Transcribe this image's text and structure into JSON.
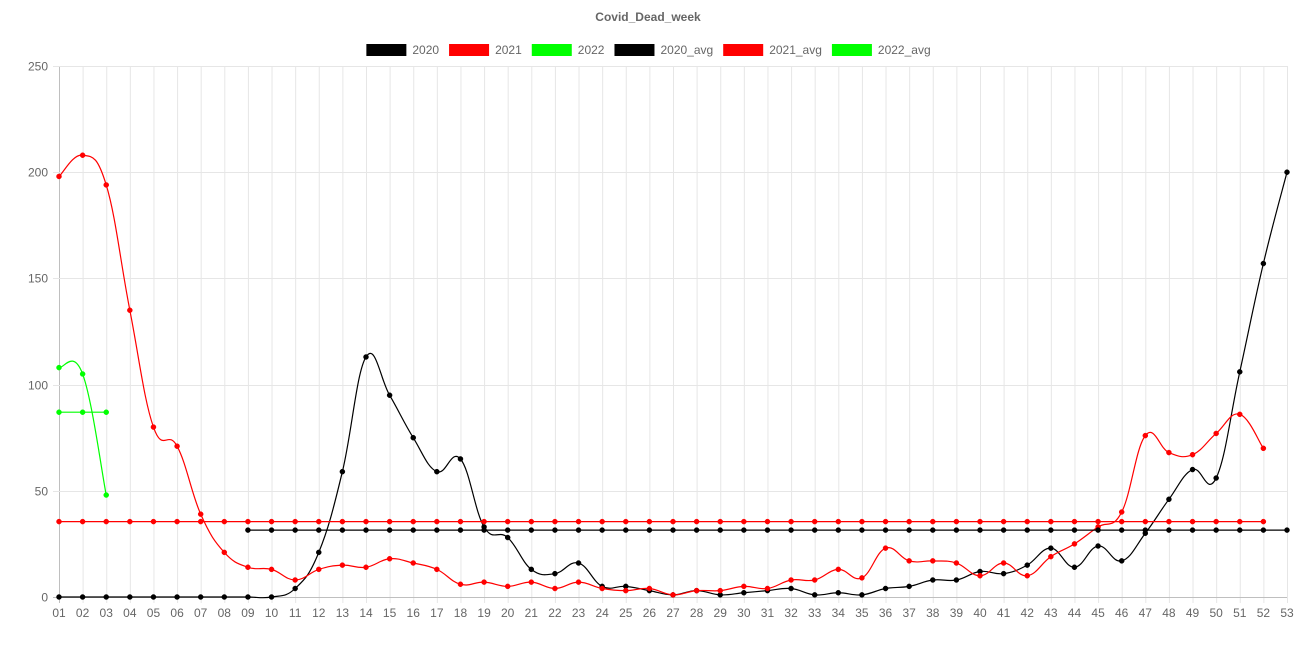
{
  "chart_data": {
    "type": "line",
    "title": "Covid_Dead_week",
    "legend_position": "top",
    "grid": true,
    "xlabel": "",
    "ylabel": "",
    "ylim": [
      0,
      250
    ],
    "yticks": [
      0,
      50,
      100,
      150,
      200,
      250
    ],
    "categories": [
      "01",
      "02",
      "03",
      "04",
      "05",
      "06",
      "07",
      "08",
      "09",
      "10",
      "11",
      "12",
      "13",
      "14",
      "15",
      "16",
      "17",
      "18",
      "19",
      "20",
      "21",
      "22",
      "23",
      "24",
      "25",
      "26",
      "27",
      "28",
      "29",
      "30",
      "31",
      "32",
      "33",
      "34",
      "35",
      "36",
      "37",
      "38",
      "39",
      "40",
      "41",
      "42",
      "43",
      "44",
      "45",
      "46",
      "47",
      "48",
      "49",
      "50",
      "51",
      "52",
      "53"
    ],
    "series": [
      {
        "name": "2020",
        "color": "#000000",
        "values": [
          0,
          0,
          0,
          0,
          0,
          0,
          0,
          0,
          0,
          0,
          4,
          21,
          59,
          113,
          95,
          75,
          59,
          65,
          33,
          28,
          13,
          11,
          16,
          5,
          5,
          3,
          1,
          3,
          1,
          2,
          3,
          4,
          1,
          2,
          1,
          4,
          5,
          8,
          8,
          12,
          11,
          15,
          23,
          14,
          24,
          17,
          30,
          46,
          60,
          56,
          106,
          157,
          200
        ]
      },
      {
        "name": "2021",
        "color": "#ff0000",
        "values": [
          198,
          208,
          194,
          135,
          80,
          71,
          39,
          21,
          14,
          13,
          8,
          13,
          15,
          14,
          18,
          16,
          13,
          6,
          7,
          5,
          7,
          4,
          7,
          4,
          3,
          4,
          1,
          3,
          3,
          5,
          4,
          8,
          8,
          13,
          9,
          23,
          17,
          17,
          16,
          10,
          16,
          10,
          19,
          25,
          33,
          40,
          76,
          68,
          67,
          77,
          86,
          70,
          null
        ]
      },
      {
        "name": "2022",
        "color": "#00ff00",
        "values": [
          108,
          105,
          48,
          null,
          null,
          null,
          null,
          null,
          null,
          null,
          null,
          null,
          null,
          null,
          null,
          null,
          null,
          null,
          null,
          null,
          null,
          null,
          null,
          null,
          null,
          null,
          null,
          null,
          null,
          null,
          null,
          null,
          null,
          null,
          null,
          null,
          null,
          null,
          null,
          null,
          null,
          null,
          null,
          null,
          null,
          null,
          null,
          null,
          null,
          null,
          null,
          null,
          null
        ]
      },
      {
        "name": "2020_avg",
        "color": "#000000",
        "constant": 31.5,
        "points": 53,
        "start_index": 8
      },
      {
        "name": "2021_avg",
        "color": "#ff0000",
        "constant": 35.5,
        "points": 52,
        "start_index": 0
      },
      {
        "name": "2022_avg",
        "color": "#00ff00",
        "constant": 87,
        "points": 3,
        "start_index": 0
      }
    ]
  }
}
